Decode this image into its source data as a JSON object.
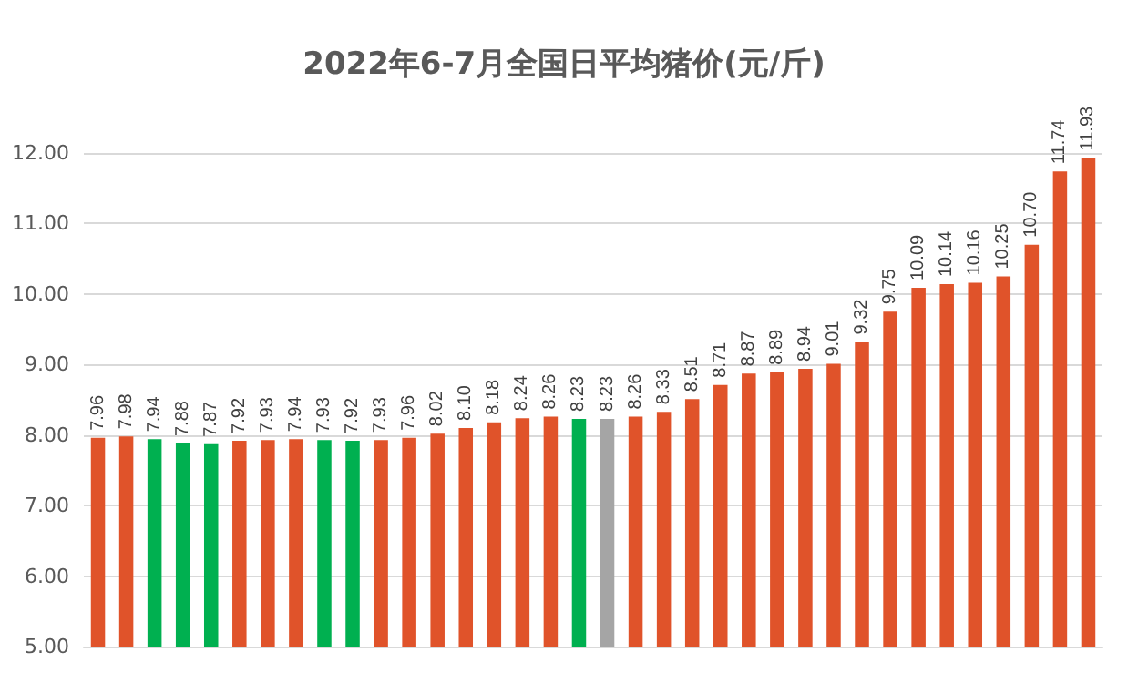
{
  "chart_data": {
    "type": "bar",
    "title": "2022年6-7月全国日平均猪价(元/斤)",
    "categories": [
      null,
      null,
      null,
      null,
      null,
      null,
      null,
      null,
      null,
      null,
      null,
      null,
      null,
      null,
      null,
      null,
      null,
      null,
      null,
      null,
      null,
      null,
      null,
      null,
      null,
      null,
      null,
      null,
      null,
      null,
      null,
      null,
      null,
      null,
      null,
      null
    ],
    "values": [
      7.96,
      7.98,
      7.94,
      7.88,
      7.87,
      7.92,
      7.93,
      7.94,
      7.93,
      7.92,
      7.93,
      7.96,
      8.02,
      8.1,
      8.18,
      8.24,
      8.26,
      8.23,
      8.23,
      8.26,
      8.33,
      8.51,
      8.71,
      8.87,
      8.89,
      8.94,
      9.01,
      9.32,
      9.75,
      10.09,
      10.14,
      10.16,
      10.25,
      10.7,
      11.74,
      11.93
    ],
    "value_labels": [
      "7.96",
      "7.98",
      "7.94",
      "7.88",
      "7.87",
      "7.92",
      "7.93",
      "7.94",
      "7.93",
      "7.92",
      "7.93",
      "7.96",
      "8.02",
      "8.10",
      "8.18",
      "8.24",
      "8.26",
      "8.23",
      "8.23",
      "8.26",
      "8.33",
      "8.51",
      "8.71",
      "8.87",
      "8.89",
      "8.94",
      "9.01",
      "9.32",
      "9.75",
      "10.09",
      "10.14",
      "10.16",
      "10.25",
      "10.70",
      "11.74",
      "11.93"
    ],
    "colors": [
      "#e0532a",
      "#e0532a",
      "#00b050",
      "#00b050",
      "#00b050",
      "#e0532a",
      "#e0532a",
      "#e0532a",
      "#00b050",
      "#00b050",
      "#e0532a",
      "#e0532a",
      "#e0532a",
      "#e0532a",
      "#e0532a",
      "#e0532a",
      "#e0532a",
      "#00b050",
      "#a5a5a5",
      "#e0532a",
      "#e0532a",
      "#e0532a",
      "#e0532a",
      "#e0532a",
      "#e0532a",
      "#e0532a",
      "#e0532a",
      "#e0532a",
      "#e0532a",
      "#e0532a",
      "#e0532a",
      "#e0532a",
      "#e0532a",
      "#e0532a",
      "#e0532a",
      "#e0532a"
    ],
    "ylim": [
      5,
      12
    ],
    "yticks": [
      {
        "value": 5,
        "label": "5.00"
      },
      {
        "value": 6,
        "label": "6.00"
      },
      {
        "value": 7,
        "label": "7.00"
      },
      {
        "value": 8,
        "label": "8.00"
      },
      {
        "value": 9,
        "label": "9.00"
      },
      {
        "value": 10,
        "label": "10.00"
      },
      {
        "value": 11,
        "label": "11.00"
      },
      {
        "value": 12,
        "label": "12.00"
      }
    ],
    "grid": "y"
  }
}
